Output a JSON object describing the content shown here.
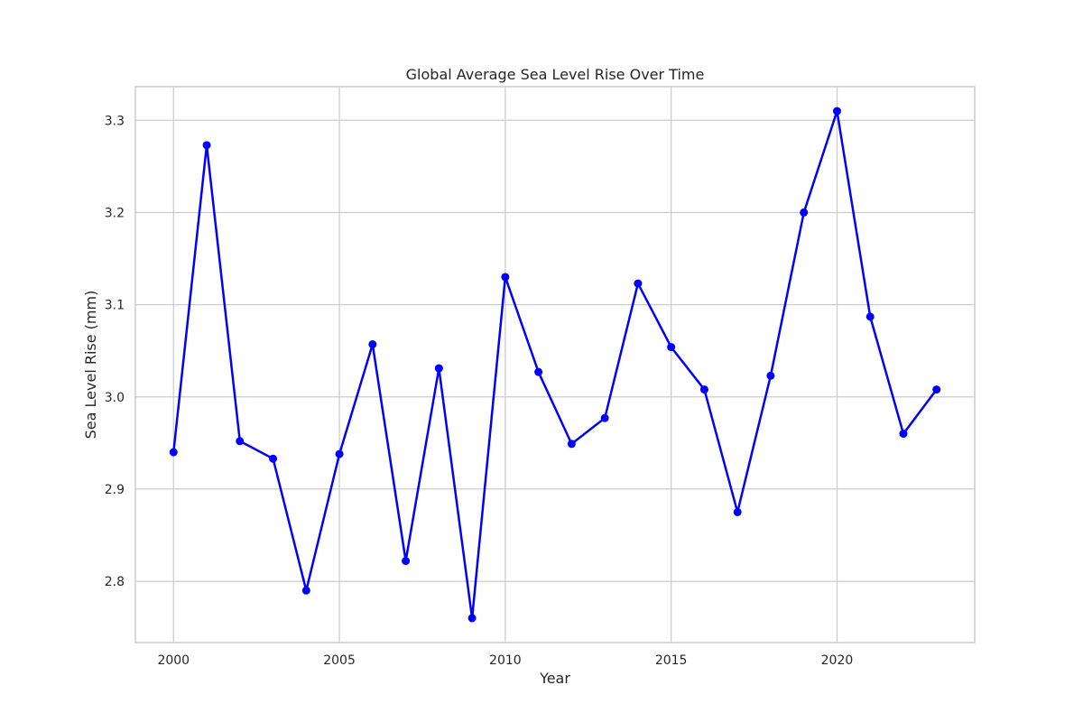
{
  "chart_data": {
    "type": "line",
    "title": "Global Average Sea Level Rise Over Time",
    "xlabel": "Year",
    "ylabel": "Sea Level Rise (mm)",
    "x": [
      2000,
      2001,
      2002,
      2003,
      2004,
      2005,
      2006,
      2007,
      2008,
      2009,
      2010,
      2011,
      2012,
      2013,
      2014,
      2015,
      2016,
      2017,
      2018,
      2019,
      2020,
      2021,
      2022,
      2023
    ],
    "series": [
      {
        "values": [
          2.94,
          3.273,
          2.952,
          2.933,
          2.79,
          2.938,
          3.057,
          2.822,
          3.031,
          2.76,
          3.13,
          3.027,
          2.949,
          2.977,
          3.123,
          3.054,
          3.008,
          2.875,
          3.023,
          3.2,
          3.31,
          3.087,
          2.96,
          3.008
        ],
        "color": "#0000ff"
      }
    ],
    "xlim": [
      1998.85,
      2024.15
    ],
    "ylim": [
      2.7335,
      3.3365
    ],
    "xticks": [
      2000,
      2005,
      2010,
      2015,
      2020
    ],
    "xtick_labels": [
      "2000",
      "2005",
      "2010",
      "2015",
      "2020"
    ],
    "yticks": [
      2.8,
      2.9,
      3.0,
      3.1,
      3.2,
      3.3
    ],
    "ytick_labels": [
      "2.8",
      "2.9",
      "3.0",
      "3.1",
      "3.2",
      "3.3"
    ],
    "grid": true,
    "marker": "circle"
  },
  "colors": {
    "line": "#0000ff",
    "grid": "#cccccc",
    "text": "#262626",
    "background": "#ffffff"
  }
}
